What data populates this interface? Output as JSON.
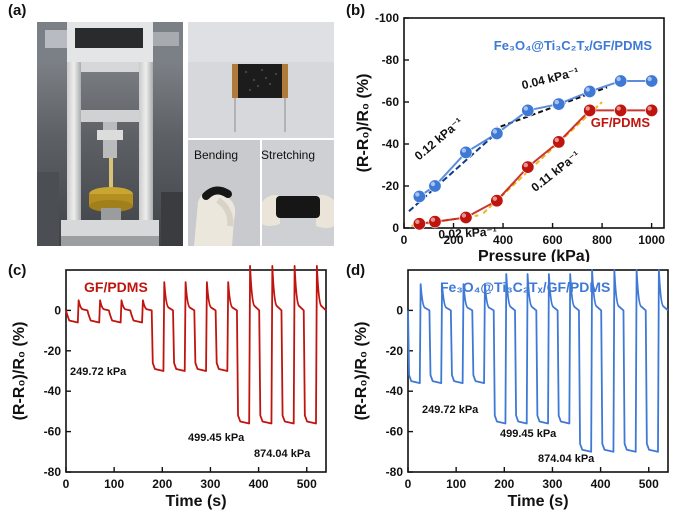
{
  "panels": {
    "a": "(a)",
    "b": "(b)",
    "c": "(c)",
    "d": "(d)"
  },
  "photos": {
    "bending_label": "Bending",
    "stretching_label": "Stretching"
  },
  "colors": {
    "red": "#c0150f",
    "blue": "#3f79d6",
    "fit_red": "#f2b51a",
    "fit_blue_dark": "#123b86",
    "fit_black": "#111111"
  },
  "chart_data": [
    {
      "id": "b",
      "type": "scatter",
      "xlabel": "Pressure (kPa)",
      "ylabel": "(R-R₀)/R₀ (%)",
      "xlim": [
        0,
        1050
      ],
      "ylim": [
        -100,
        0
      ],
      "y_inverted": true,
      "xticks": [
        0,
        200,
        400,
        600,
        800,
        1000
      ],
      "yticks": [
        -100,
        -80,
        -60,
        -40,
        -20,
        0
      ],
      "series": [
        {
          "name": "Fe₃O₄@Ti₃C₂Tₓ/GF/PDMS",
          "color": "#3f79d6",
          "x": [
            62,
            125,
            250,
            375,
            500,
            625,
            750,
            875,
            1000
          ],
          "y": [
            -15,
            -20,
            -36,
            -45,
            -56,
            -59,
            -65,
            -70,
            -70
          ]
        },
        {
          "name": "GF/PDMS",
          "color": "#c0150f",
          "x": [
            62,
            125,
            250,
            375,
            500,
            625,
            750,
            875,
            1000
          ],
          "y": [
            -2,
            -3,
            -5,
            -13,
            -29,
            -41,
            -56,
            -56,
            -56
          ]
        }
      ],
      "annotations": [
        "0.12 kPa⁻¹",
        "0.04 kPa⁻¹",
        "0.02 kPa⁻¹",
        "0.11 kPa⁻¹"
      ]
    },
    {
      "id": "c",
      "type": "line",
      "title": "GF/PDMS",
      "xlabel": "Time (s)",
      "ylabel": "(R-R₀)/R₀ (%)",
      "xlim": [
        0,
        540
      ],
      "ylim": [
        -80,
        20
      ],
      "xticks": [
        0,
        100,
        200,
        300,
        400,
        500
      ],
      "yticks": [
        -80,
        -60,
        -40,
        -20,
        0
      ],
      "color": "#c0150f",
      "stages": [
        {
          "label": "249.72 kPa",
          "t_start": 0,
          "t_end": 178,
          "low": -6,
          "peak": 5
        },
        {
          "label": "499.45 kPa",
          "t_start": 178,
          "t_end": 355,
          "low": -30,
          "peak": 14
        },
        {
          "label": "874.04 kPa",
          "t_start": 355,
          "t_end": 540,
          "low": -56,
          "peak": 22
        }
      ]
    },
    {
      "id": "d",
      "type": "line",
      "title": "Fe₃O₄@Ti₃C₂Tₓ/GF/PDMS",
      "xlabel": "Time (s)",
      "ylabel": "(R-R₀)/R₀ (%)",
      "xlim": [
        0,
        540
      ],
      "ylim": [
        -80,
        20
      ],
      "xticks": [
        0,
        100,
        200,
        300,
        400,
        500
      ],
      "yticks": [
        -80,
        -60,
        -40,
        -20,
        0
      ],
      "color": "#3f79d6",
      "stages": [
        {
          "label": "249.72 kPa",
          "t_start": 0,
          "t_end": 178,
          "low": -36,
          "peak": 13
        },
        {
          "label": "499.45 kPa",
          "t_start": 178,
          "t_end": 355,
          "low": -56,
          "peak": 18
        },
        {
          "label": "874.04 kPa",
          "t_start": 355,
          "t_end": 540,
          "low": -70,
          "peak": 20
        }
      ]
    }
  ]
}
